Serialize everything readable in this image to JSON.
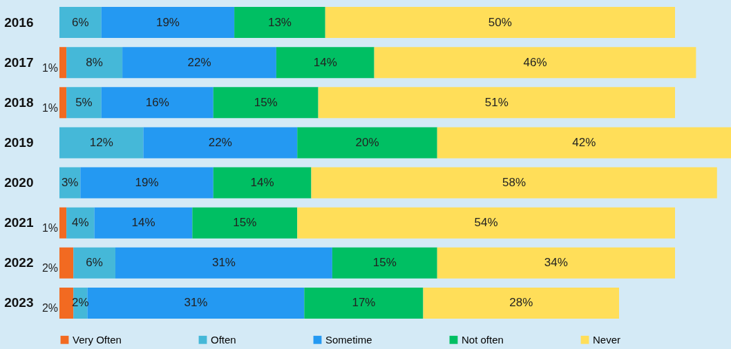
{
  "chart_data": {
    "type": "bar",
    "orientation": "horizontal",
    "stacked": true,
    "legend": "bottom",
    "categories": [
      "2016",
      "2017",
      "2018",
      "2019",
      "2020",
      "2021",
      "2022",
      "2023"
    ],
    "series": [
      {
        "name": "Very Often",
        "color": "#f26a21",
        "values": [
          null,
          1,
          1,
          null,
          null,
          1,
          2,
          2
        ],
        "value_labels": [
          null,
          "1%",
          "1%",
          null,
          null,
          "1%",
          "2%",
          "2%"
        ]
      },
      {
        "name": "Often",
        "color": "#45b8d8",
        "values": [
          6,
          8,
          5,
          12,
          3,
          4,
          6,
          2
        ],
        "value_labels": [
          "6%",
          "8%",
          "5%",
          "12%",
          "3%",
          "4%",
          "6%",
          "2%"
        ]
      },
      {
        "name": "Sometime",
        "color": "#2499f2",
        "values": [
          19,
          22,
          16,
          22,
          19,
          14,
          31,
          31
        ],
        "value_labels": [
          "19%",
          "22%",
          "16%",
          "22%",
          "19%",
          "14%",
          "31%",
          "31%"
        ]
      },
      {
        "name": "Not often",
        "color": "#00bf63",
        "values": [
          13,
          14,
          15,
          20,
          14,
          15,
          15,
          17
        ],
        "value_labels": [
          "13%",
          "14%",
          "15%",
          "20%",
          "14%",
          "15%",
          "15%",
          "17%"
        ]
      },
      {
        "name": "Never",
        "color": "#ffde59",
        "values": [
          50,
          46,
          51,
          42,
          58,
          54,
          34,
          28
        ],
        "value_labels": [
          "50%",
          "46%",
          "51%",
          "42%",
          "58%",
          "54%",
          "34%",
          "28%"
        ]
      }
    ]
  }
}
